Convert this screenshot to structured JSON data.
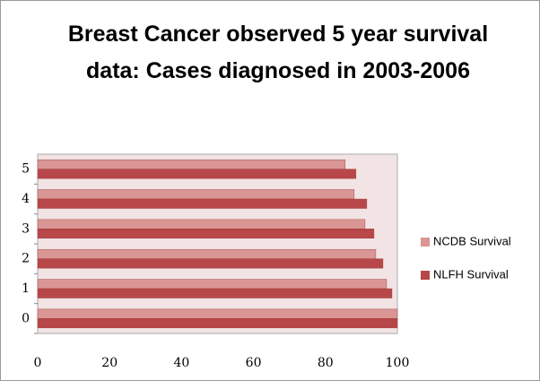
{
  "chart_data": {
    "type": "hbar",
    "title": "Breast Cancer observed 5 year survival data: Cases diagnosed in 2003-2006",
    "categories": [
      0,
      1,
      2,
      3,
      4,
      5
    ],
    "series": [
      {
        "name": "NCDB Survival",
        "color": "#d99694",
        "values": [
          100,
          97,
          94,
          91,
          88,
          85.5
        ]
      },
      {
        "name": "NLFH Survival",
        "color": "#b8474a",
        "values": [
          100,
          98.5,
          96,
          93.5,
          91.5,
          88.5
        ]
      }
    ],
    "xlim": [
      0,
      100
    ],
    "xticks": [
      0,
      20,
      40,
      60,
      80,
      100
    ],
    "grid": false,
    "legend": "right"
  }
}
